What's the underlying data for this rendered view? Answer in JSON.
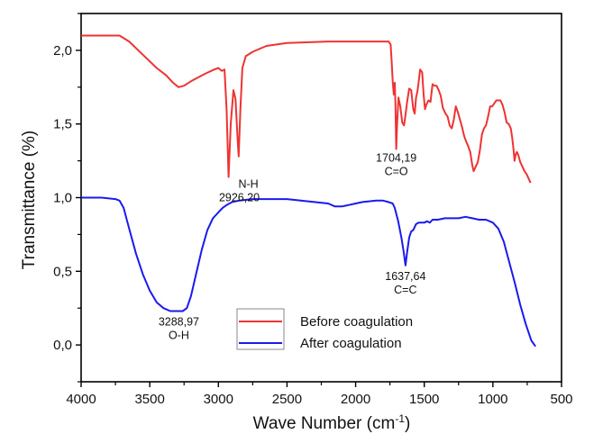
{
  "chart_data": {
    "type": "line",
    "title": "",
    "xlabel": "Wave Number (cm",
    "xlabel_superscript": "-1",
    "xlabel_suffix": ")",
    "ylabel": "Transmittance (%)",
    "xlim": [
      4000,
      500
    ],
    "ylim": [
      -0.25,
      2.25
    ],
    "x_ticks": [
      4000,
      3500,
      3000,
      2500,
      2000,
      1500,
      1000,
      500
    ],
    "x_tick_labels": [
      "4000",
      "3500",
      "3000",
      "2500",
      "2000",
      "1500",
      "1000",
      "500"
    ],
    "y_ticks": [
      0.0,
      0.5,
      1.0,
      1.5,
      2.0
    ],
    "y_tick_labels": [
      "0,0",
      "0,5",
      "1,0",
      "1,5",
      "2,0"
    ],
    "grid": false,
    "legend_position": "lower-center",
    "series": [
      {
        "name": "Before coagulation",
        "color": "#ee3333",
        "points": [
          [
            4000,
            2.1
          ],
          [
            3850,
            2.1
          ],
          [
            3720,
            2.1
          ],
          [
            3650,
            2.06
          ],
          [
            3550,
            1.97
          ],
          [
            3450,
            1.88
          ],
          [
            3380,
            1.83
          ],
          [
            3330,
            1.78
          ],
          [
            3290,
            1.75
          ],
          [
            3250,
            1.76
          ],
          [
            3200,
            1.79
          ],
          [
            3100,
            1.84
          ],
          [
            3030,
            1.87
          ],
          [
            3000,
            1.88
          ],
          [
            2975,
            1.86
          ],
          [
            2955,
            1.87
          ],
          [
            2940,
            1.6
          ],
          [
            2926,
            1.14
          ],
          [
            2910,
            1.5
          ],
          [
            2890,
            1.73
          ],
          [
            2875,
            1.67
          ],
          [
            2860,
            1.4
          ],
          [
            2852,
            1.28
          ],
          [
            2840,
            1.6
          ],
          [
            2825,
            1.88
          ],
          [
            2800,
            1.96
          ],
          [
            2750,
            1.99
          ],
          [
            2650,
            2.03
          ],
          [
            2500,
            2.05
          ],
          [
            2200,
            2.06
          ],
          [
            1900,
            2.06
          ],
          [
            1760,
            2.06
          ],
          [
            1745,
            2.04
          ],
          [
            1738,
            1.93
          ],
          [
            1730,
            1.79
          ],
          [
            1722,
            1.7
          ],
          [
            1715,
            1.78
          ],
          [
            1710,
            1.64
          ],
          [
            1704,
            1.33
          ],
          [
            1698,
            1.5
          ],
          [
            1688,
            1.68
          ],
          [
            1675,
            1.62
          ],
          [
            1660,
            1.51
          ],
          [
            1648,
            1.49
          ],
          [
            1640,
            1.54
          ],
          [
            1625,
            1.65
          ],
          [
            1610,
            1.74
          ],
          [
            1595,
            1.73
          ],
          [
            1580,
            1.6
          ],
          [
            1570,
            1.57
          ],
          [
            1560,
            1.68
          ],
          [
            1550,
            1.72
          ],
          [
            1540,
            1.79
          ],
          [
            1530,
            1.87
          ],
          [
            1515,
            1.85
          ],
          [
            1505,
            1.7
          ],
          [
            1495,
            1.6
          ],
          [
            1485,
            1.63
          ],
          [
            1470,
            1.66
          ],
          [
            1455,
            1.65
          ],
          [
            1440,
            1.77
          ],
          [
            1425,
            1.76
          ],
          [
            1410,
            1.76
          ],
          [
            1395,
            1.73
          ],
          [
            1380,
            1.69
          ],
          [
            1365,
            1.61
          ],
          [
            1345,
            1.57
          ],
          [
            1330,
            1.55
          ],
          [
            1315,
            1.49
          ],
          [
            1300,
            1.47
          ],
          [
            1285,
            1.53
          ],
          [
            1270,
            1.62
          ],
          [
            1255,
            1.58
          ],
          [
            1240,
            1.53
          ],
          [
            1225,
            1.48
          ],
          [
            1210,
            1.42
          ],
          [
            1195,
            1.38
          ],
          [
            1180,
            1.35
          ],
          [
            1165,
            1.31
          ],
          [
            1150,
            1.22
          ],
          [
            1140,
            1.18
          ],
          [
            1125,
            1.21
          ],
          [
            1110,
            1.24
          ],
          [
            1095,
            1.32
          ],
          [
            1080,
            1.43
          ],
          [
            1065,
            1.47
          ],
          [
            1050,
            1.49
          ],
          [
            1035,
            1.55
          ],
          [
            1020,
            1.62
          ],
          [
            1005,
            1.62
          ],
          [
            990,
            1.64
          ],
          [
            975,
            1.66
          ],
          [
            960,
            1.66
          ],
          [
            945,
            1.66
          ],
          [
            930,
            1.63
          ],
          [
            915,
            1.58
          ],
          [
            900,
            1.51
          ],
          [
            885,
            1.5
          ],
          [
            870,
            1.47
          ],
          [
            860,
            1.41
          ],
          [
            850,
            1.33
          ],
          [
            842,
            1.25
          ],
          [
            835,
            1.29
          ],
          [
            825,
            1.31
          ],
          [
            815,
            1.29
          ],
          [
            800,
            1.24
          ],
          [
            785,
            1.21
          ],
          [
            770,
            1.18
          ],
          [
            755,
            1.16
          ],
          [
            745,
            1.14
          ],
          [
            735,
            1.12
          ],
          [
            725,
            1.1
          ]
        ]
      },
      {
        "name": "After coagulation",
        "color": "#1a1aee",
        "points": [
          [
            4000,
            1.0
          ],
          [
            3850,
            1.0
          ],
          [
            3750,
            0.99
          ],
          [
            3720,
            0.98
          ],
          [
            3690,
            0.93
          ],
          [
            3650,
            0.79
          ],
          [
            3600,
            0.62
          ],
          [
            3550,
            0.48
          ],
          [
            3500,
            0.37
          ],
          [
            3450,
            0.29
          ],
          [
            3400,
            0.25
          ],
          [
            3350,
            0.23
          ],
          [
            3300,
            0.23
          ],
          [
            3260,
            0.23
          ],
          [
            3230,
            0.25
          ],
          [
            3200,
            0.33
          ],
          [
            3160,
            0.49
          ],
          [
            3120,
            0.65
          ],
          [
            3080,
            0.78
          ],
          [
            3040,
            0.86
          ],
          [
            3010,
            0.89
          ],
          [
            2990,
            0.91
          ],
          [
            2970,
            0.93
          ],
          [
            2940,
            0.95
          ],
          [
            2900,
            0.97
          ],
          [
            2850,
            0.98
          ],
          [
            2750,
            0.99
          ],
          [
            2600,
            0.99
          ],
          [
            2500,
            0.99
          ],
          [
            2400,
            0.98
          ],
          [
            2300,
            0.97
          ],
          [
            2200,
            0.96
          ],
          [
            2150,
            0.94
          ],
          [
            2100,
            0.94
          ],
          [
            2050,
            0.95
          ],
          [
            2000,
            0.96
          ],
          [
            1950,
            0.97
          ],
          [
            1850,
            0.98
          ],
          [
            1800,
            0.98
          ],
          [
            1760,
            0.97
          ],
          [
            1730,
            0.96
          ],
          [
            1715,
            0.93
          ],
          [
            1690,
            0.84
          ],
          [
            1665,
            0.72
          ],
          [
            1650,
            0.63
          ],
          [
            1637,
            0.54
          ],
          [
            1625,
            0.63
          ],
          [
            1610,
            0.73
          ],
          [
            1595,
            0.77
          ],
          [
            1580,
            0.78
          ],
          [
            1560,
            0.82
          ],
          [
            1540,
            0.83
          ],
          [
            1520,
            0.83
          ],
          [
            1500,
            0.83
          ],
          [
            1480,
            0.84
          ],
          [
            1460,
            0.83
          ],
          [
            1440,
            0.85
          ],
          [
            1400,
            0.85
          ],
          [
            1350,
            0.86
          ],
          [
            1300,
            0.86
          ],
          [
            1250,
            0.86
          ],
          [
            1200,
            0.87
          ],
          [
            1150,
            0.86
          ],
          [
            1100,
            0.85
          ],
          [
            1050,
            0.85
          ],
          [
            1000,
            0.83
          ],
          [
            960,
            0.79
          ],
          [
            920,
            0.7
          ],
          [
            880,
            0.56
          ],
          [
            840,
            0.42
          ],
          [
            800,
            0.27
          ],
          [
            760,
            0.14
          ],
          [
            720,
            0.03
          ],
          [
            690,
            -0.01
          ]
        ]
      }
    ],
    "annotations": [
      {
        "lines": [
          "N-H",
          "2926,20"
        ],
        "x": 2926,
        "y": 1.14,
        "series": "Before coagulation"
      },
      {
        "lines": [
          "1704,19",
          "C=O"
        ],
        "x": 1704,
        "y": 1.33,
        "series": "Before coagulation"
      },
      {
        "lines": [
          "3288,97",
          "O-H"
        ],
        "x": 3288,
        "y": 0.23,
        "series": "After coagulation"
      },
      {
        "lines": [
          "1637,64",
          "C=C"
        ],
        "x": 1637,
        "y": 0.54,
        "series": "After coagulation"
      }
    ]
  }
}
